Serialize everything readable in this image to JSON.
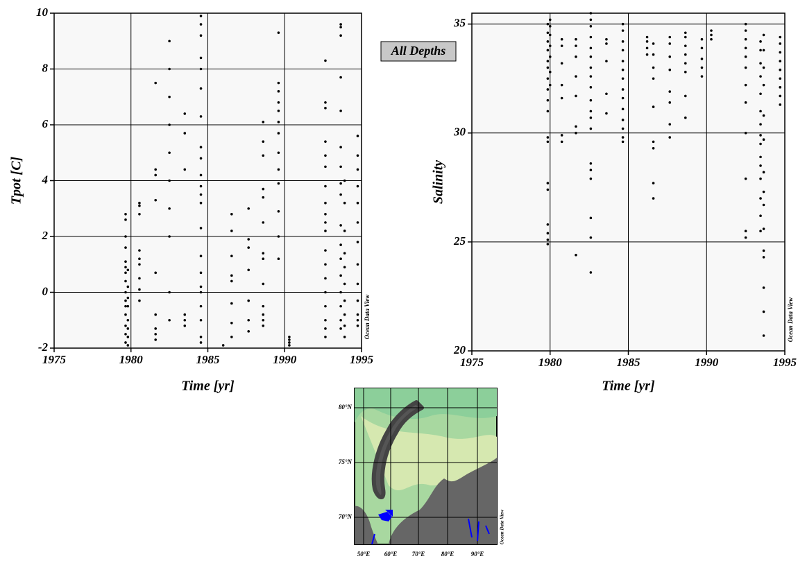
{
  "label": "All Depths",
  "chart_data": [
    {
      "type": "scatter",
      "xlabel": "Time [yr]",
      "ylabel": "Tpot [C]",
      "annotation": "Ocean Data View",
      "color": "#000000",
      "grid": true,
      "xlim": [
        1975,
        1995
      ],
      "xticks": [
        1975,
        1980,
        1985,
        1990,
        1995
      ],
      "ylim": [
        -2,
        10
      ],
      "yticks": [
        -2,
        0,
        2,
        4,
        6,
        8,
        10
      ],
      "series": [
        {
          "x": 1979.65,
          "values": [
            2.8,
            2.6,
            2.0,
            1.6,
            1.1,
            0.9,
            0.7,
            0.4,
            0.0,
            -0.3,
            -0.5,
            -0.8,
            -1.2,
            -1.5,
            -1.8
          ]
        },
        {
          "x": 1979.8,
          "values": [
            0.8,
            0.2,
            -0.2,
            -0.5,
            -1.0,
            -1.3,
            -1.6,
            -1.9
          ]
        },
        {
          "x": 1980.55,
          "values": [
            3.2,
            3.1,
            2.8,
            1.5,
            1.2,
            1.0,
            0.5,
            0.1,
            -0.3
          ]
        },
        {
          "x": 1981.6,
          "values": [
            7.5,
            4.4,
            4.2,
            3.3,
            0.7,
            -0.8,
            -1.3,
            -1.5,
            -1.7
          ]
        },
        {
          "x": 1982.5,
          "values": [
            9.0,
            8.0,
            7.0,
            6.0,
            5.0,
            4.0,
            3.0,
            2.0,
            0.0,
            -1.0
          ]
        },
        {
          "x": 1983.5,
          "values": [
            6.4,
            5.7,
            4.4,
            -0.8,
            -1.0,
            -1.2
          ]
        },
        {
          "x": 1984.55,
          "values": [
            9.9,
            9.6,
            9.2,
            8.4,
            8.0,
            7.3,
            6.3,
            5.2,
            4.8,
            4.2,
            3.8,
            3.5,
            3.2,
            2.3,
            1.3,
            0.7,
            0.2,
            0.0,
            -0.5,
            -1.0,
            -1.6,
            -1.8
          ]
        },
        {
          "x": 1986.0,
          "values": [
            -1.9
          ]
        },
        {
          "x": 1986.55,
          "values": [
            2.8,
            2.2,
            1.3,
            0.6,
            0.4,
            -0.4,
            -1.1,
            -1.6
          ]
        },
        {
          "x": 1987.65,
          "values": [
            3.0,
            1.9,
            1.6,
            0.8,
            -0.3,
            -1.0,
            -1.4
          ]
        },
        {
          "x": 1988.6,
          "values": [
            6.1,
            5.4,
            4.9,
            3.7,
            3.4,
            2.5,
            1.4,
            1.2,
            0.3,
            -0.5,
            -0.8,
            -1.0,
            -1.2
          ]
        },
        {
          "x": 1989.6,
          "values": [
            9.3,
            7.5,
            7.2,
            6.8,
            6.5,
            6.1,
            5.7,
            5.0,
            4.4,
            3.9,
            2.9,
            2.0,
            1.2
          ]
        },
        {
          "x": 1990.3,
          "values": [
            -1.6,
            -1.7,
            -1.8,
            -1.9
          ]
        },
        {
          "x": 1992.65,
          "values": [
            8.3,
            6.8,
            6.6,
            5.4,
            4.9,
            4.5,
            3.8,
            3.2,
            2.8,
            2.5,
            2.2,
            1.5,
            1.0,
            0.5,
            0.0,
            -0.5,
            -1.0,
            -1.3,
            -1.6
          ]
        },
        {
          "x": 1993.65,
          "values": [
            9.6,
            9.5,
            9.2,
            7.7,
            6.5,
            5.2,
            4.5,
            3.9,
            3.5,
            2.4,
            1.7,
            1.2,
            0.6,
            0.0,
            -0.5,
            -1.0,
            -1.3
          ]
        },
        {
          "x": 1993.9,
          "values": [
            4.0,
            3.2,
            2.2,
            1.4,
            0.9,
            0.3,
            -0.3,
            -0.8,
            -1.2,
            -1.6
          ]
        },
        {
          "x": 1994.75,
          "values": [
            5.6,
            4.9,
            4.4,
            3.8,
            3.2,
            2.5,
            1.8,
            1.0,
            0.3,
            -0.3,
            -0.8,
            -1.0,
            -1.2
          ]
        }
      ]
    },
    {
      "type": "scatter",
      "xlabel": "Time [yr]",
      "ylabel": "Salinity",
      "annotation": "Ocean Data View",
      "color": "#000000",
      "grid": true,
      "xlim": [
        1975,
        1995
      ],
      "xticks": [
        1975,
        1980,
        1985,
        1990,
        1995
      ],
      "ylim": [
        20,
        35.5
      ],
      "yticks": [
        20,
        25,
        30,
        35
      ],
      "series": [
        {
          "x": 1979.85,
          "values": [
            35.0,
            34.6,
            34.2,
            33.8,
            33.3,
            33.0,
            32.5,
            32.0,
            31.5,
            31.0,
            29.8,
            29.6,
            27.7,
            27.4,
            25.8,
            25.4,
            25.1,
            24.9
          ]
        },
        {
          "x": 1980.0,
          "values": [
            35.2,
            34.9,
            34.5,
            34.0,
            33.5,
            32.8,
            32.2
          ]
        },
        {
          "x": 1980.75,
          "values": [
            34.3,
            34.0,
            33.2,
            32.2,
            31.6,
            29.9,
            29.6
          ]
        },
        {
          "x": 1981.65,
          "values": [
            34.3,
            34.0,
            33.5,
            32.6,
            31.7,
            30.3,
            30.0,
            24.4
          ]
        },
        {
          "x": 1982.6,
          "values": [
            35.5,
            35.2,
            34.9,
            34.4,
            33.9,
            33.5,
            33.0,
            32.6,
            32.1,
            31.5,
            31.0,
            30.7,
            30.2,
            28.6,
            28.3,
            27.9,
            26.1,
            25.2,
            23.6
          ]
        },
        {
          "x": 1983.6,
          "values": [
            34.3,
            34.1,
            33.3,
            31.8,
            30.9
          ]
        },
        {
          "x": 1984.65,
          "values": [
            35.0,
            34.7,
            34.2,
            33.8,
            33.3,
            32.9,
            32.5,
            32.0,
            31.6,
            31.1,
            30.6,
            30.2,
            29.8,
            29.6
          ]
        },
        {
          "x": 1986.2,
          "values": [
            34.4,
            34.2,
            33.9,
            33.6
          ]
        },
        {
          "x": 1986.6,
          "values": [
            34.1,
            33.6,
            33.0,
            32.5,
            31.2,
            29.6,
            29.3,
            27.7,
            27.0
          ]
        },
        {
          "x": 1987.65,
          "values": [
            34.4,
            34.1,
            33.5,
            32.9,
            31.9,
            31.4,
            30.4,
            29.8
          ]
        },
        {
          "x": 1988.65,
          "values": [
            34.6,
            34.4,
            34.0,
            33.6,
            33.2,
            32.8,
            31.7,
            30.7
          ]
        },
        {
          "x": 1989.7,
          "values": [
            34.3,
            33.9,
            33.4,
            33.0,
            32.6
          ]
        },
        {
          "x": 1990.3,
          "values": [
            34.7,
            34.5,
            34.3
          ]
        },
        {
          "x": 1992.5,
          "values": [
            35.0,
            34.7,
            34.3,
            33.9,
            33.5,
            33.0,
            32.2,
            31.4,
            30.0,
            27.9,
            25.5,
            25.2
          ]
        },
        {
          "x": 1993.45,
          "values": [
            34.2,
            33.8,
            33.2,
            32.6,
            31.8,
            31.0,
            30.4,
            29.9,
            29.5,
            28.9,
            28.5,
            27.9,
            27.0,
            26.2,
            25.5
          ]
        },
        {
          "x": 1993.65,
          "values": [
            34.5,
            33.8,
            33.0,
            32.2,
            30.8,
            29.7,
            28.2,
            27.3,
            26.7,
            25.6,
            24.6,
            24.3,
            22.9,
            21.8,
            20.7
          ]
        },
        {
          "x": 1994.7,
          "values": [
            34.4,
            34.1,
            33.7,
            33.3,
            32.9,
            32.5,
            32.1,
            31.7,
            31.3
          ]
        }
      ]
    }
  ],
  "map": {
    "lat_labels": [
      "80°N",
      "75°N",
      "70°N"
    ],
    "lon_labels": [
      "50°E",
      "60°E",
      "70°E",
      "80°E",
      "90°E"
    ],
    "annotation": "Ocean Data View"
  }
}
